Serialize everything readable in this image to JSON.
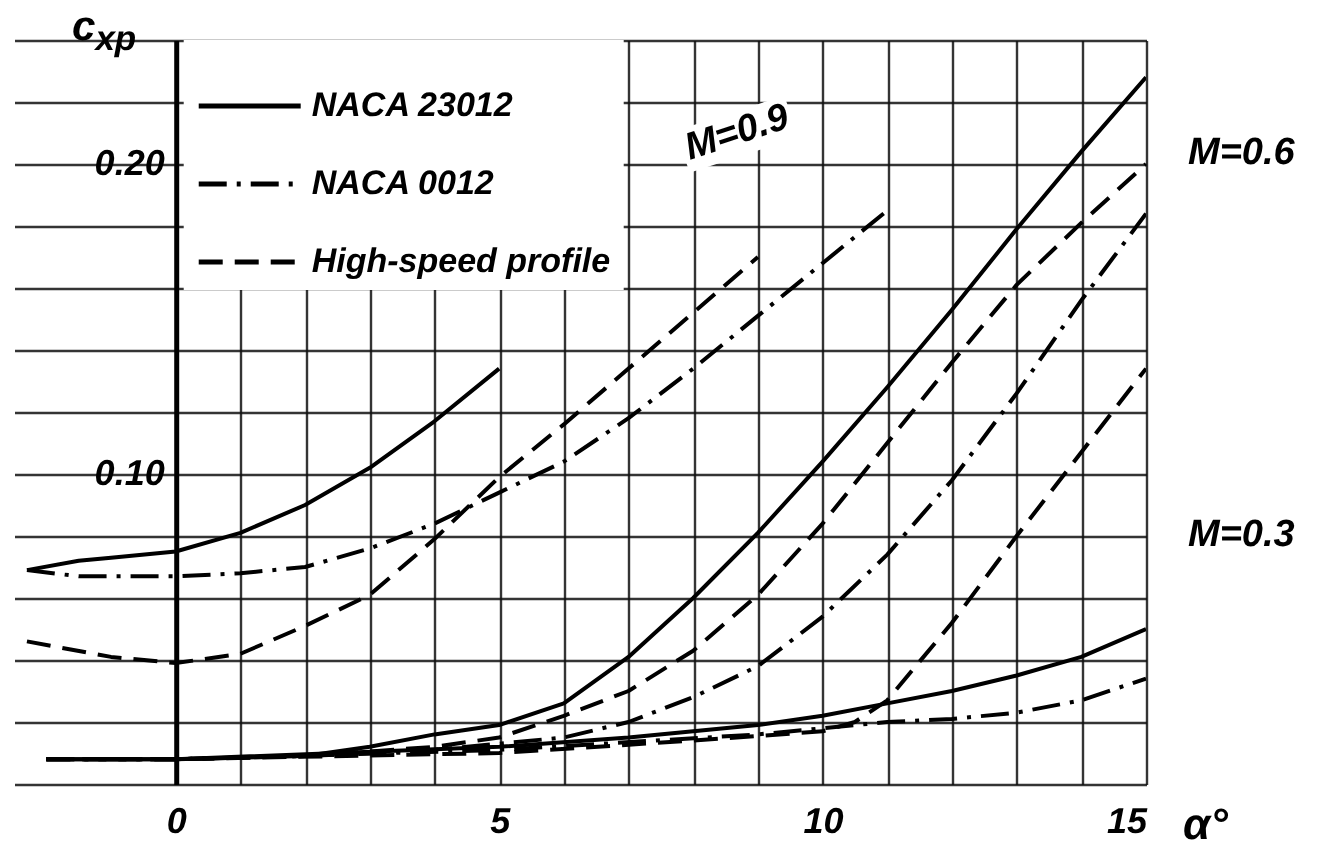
{
  "chart_data": {
    "type": "line",
    "xlabel": "α°",
    "ylabel": "c$_{xp}$",
    "xlim": [
      -2.5,
      15
    ],
    "ylim": [
      0,
      0.24
    ],
    "xticks": [
      0,
      {
        "value": 1,
        "label": null
      },
      {
        "value": 2,
        "label": null
      },
      {
        "value": 3,
        "label": null
      },
      {
        "value": 4,
        "label": null
      },
      5,
      {
        "value": 6,
        "label": null
      },
      {
        "value": 7,
        "label": null
      },
      {
        "value": 8,
        "label": null
      },
      {
        "value": 9,
        "label": null
      },
      10,
      {
        "value": 11,
        "label": null
      },
      {
        "value": 12,
        "label": null
      },
      {
        "value": 13,
        "label": null
      },
      {
        "value": 14,
        "label": null
      },
      15
    ],
    "yticks": [
      {
        "value": 0,
        "label": null
      },
      {
        "value": 0.02,
        "label": null
      },
      {
        "value": 0.04,
        "label": null
      },
      {
        "value": 0.06,
        "label": null
      },
      {
        "value": 0.08,
        "label": null
      },
      {
        "value": 0.1,
        "label": "0.10"
      },
      {
        "value": 0.12,
        "label": null
      },
      {
        "value": 0.14,
        "label": null
      },
      {
        "value": 0.16,
        "label": null
      },
      {
        "value": 0.18,
        "label": null
      },
      {
        "value": 0.2,
        "label": "0.20"
      },
      {
        "value": 0.22,
        "label": null
      },
      {
        "value": 0.24,
        "label": null
      }
    ],
    "grid": true,
    "legend": "top left",
    "series": [
      {
        "name": "NACA 23012",
        "color": "#000000",
        "line_style": "solid",
        "x": [
          -2.3,
          -1.5,
          -1,
          0,
          1,
          2,
          3,
          4,
          5
        ],
        "values": [
          0.069,
          0.072,
          0.073,
          0.075,
          0.081,
          0.09,
          0.102,
          0.117,
          0.134
        ]
      },
      {
        "name": "NACA 0012",
        "color": "#000000",
        "line_style": "dashdot",
        "x": [
          -2.3,
          -1.5,
          -1,
          0,
          1,
          2,
          3,
          4,
          5,
          6,
          7,
          8,
          9,
          10,
          11
        ],
        "values": [
          0.069,
          0.067,
          0.067,
          0.067,
          0.068,
          0.07,
          0.076,
          0.084,
          0.094,
          0.104,
          0.118,
          0.134,
          0.151,
          0.168,
          0.185
        ]
      },
      {
        "name": "High-speed profile",
        "color": "#000000",
        "line_style": "dashed",
        "x": [
          -2.3,
          -1,
          0,
          1,
          2,
          3,
          4,
          5,
          6,
          7,
          8,
          9
        ],
        "values": [
          0.046,
          0.041,
          0.039,
          0.042,
          0.051,
          0.061,
          0.079,
          0.099,
          0.116,
          0.134,
          0.152,
          0.17
        ]
      },
      {
        "color": "#000000",
        "line_style": "solid",
        "x": [
          -2,
          0,
          2,
          3,
          4,
          5,
          6,
          7,
          8,
          9,
          10,
          11,
          12,
          13,
          14,
          15
        ],
        "values": [
          0.008,
          0.008,
          0.009,
          0.012,
          0.016,
          0.019,
          0.026,
          0.041,
          0.06,
          0.081,
          0.104,
          0.128,
          0.153,
          0.179,
          0.204,
          0.228
        ]
      },
      {
        "color": "#000000",
        "line_style": "dashdot",
        "x": [
          -2,
          0,
          2,
          4,
          6,
          7,
          8,
          9,
          10,
          11,
          12,
          13,
          14,
          15
        ],
        "values": [
          0.008,
          0.008,
          0.009,
          0.011,
          0.015,
          0.02,
          0.028,
          0.038,
          0.054,
          0.074,
          0.098,
          0.126,
          0.156,
          0.184
        ]
      },
      {
        "color": "#000000",
        "line_style": "dashed",
        "x": [
          -2,
          0,
          2,
          4,
          5,
          6,
          7,
          8,
          9,
          10,
          11,
          12,
          13,
          14,
          15
        ],
        "values": [
          0.008,
          0.008,
          0.009,
          0.012,
          0.015,
          0.022,
          0.03,
          0.043,
          0.061,
          0.084,
          0.11,
          0.136,
          0.161,
          0.181,
          0.2
        ]
      },
      {
        "color": "#000000",
        "line_style": "solid",
        "x": [
          -2,
          0,
          5,
          7,
          9,
          10,
          11,
          12,
          13,
          14,
          15
        ],
        "values": [
          0.008,
          0.008,
          0.012,
          0.015,
          0.019,
          0.022,
          0.026,
          0.03,
          0.035,
          0.041,
          0.05
        ]
      },
      {
        "color": "#000000",
        "line_style": "dashdot",
        "x": [
          -2,
          0,
          5,
          9,
          10,
          11,
          12,
          13,
          14,
          15
        ],
        "values": [
          0.008,
          0.008,
          0.011,
          0.016,
          0.018,
          0.02,
          0.021,
          0.023,
          0.027,
          0.034
        ]
      },
      {
        "color": "#000000",
        "line_style": "dashed",
        "x": [
          -2,
          0,
          5,
          8,
          10,
          10.5,
          11,
          12,
          13,
          14,
          15
        ],
        "values": [
          0.008,
          0.008,
          0.01,
          0.014,
          0.017,
          0.02,
          0.027,
          0.052,
          0.08,
          0.107,
          0.134
        ]
      }
    ],
    "annotations": [
      "M=0.9",
      "M=0.6",
      "M=0.3"
    ]
  }
}
